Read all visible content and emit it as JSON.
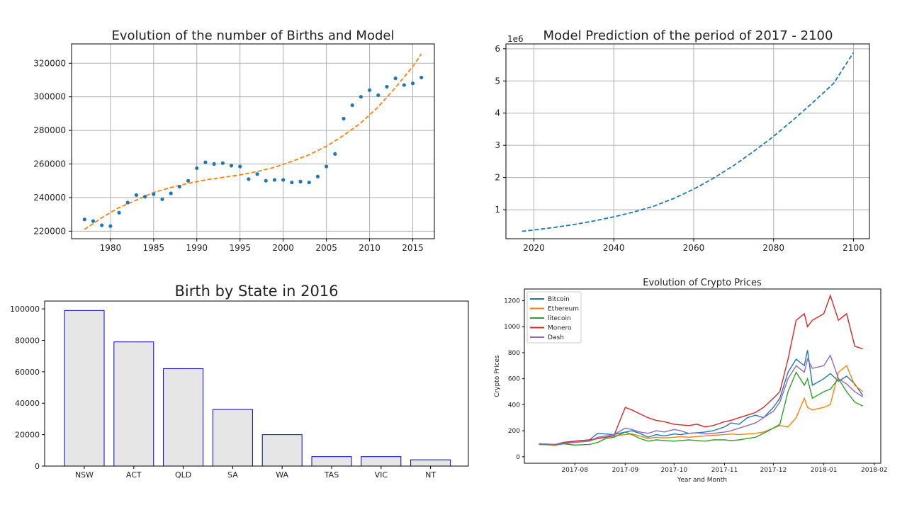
{
  "chart_data": [
    {
      "type": "scatter",
      "title": "Evolution of the number of Births and Model",
      "xlabel": "",
      "ylabel": "",
      "xlim": [
        1975.5,
        2017.5
      ],
      "ylim": [
        215500,
        331500
      ],
      "grid": true,
      "xticks": [
        1980,
        1985,
        1990,
        1995,
        2000,
        2005,
        2010,
        2015
      ],
      "yticks": [
        220000,
        240000,
        260000,
        280000,
        300000,
        320000
      ],
      "colors": {
        "points": "#1f77b4",
        "model": "#ff7f0e"
      },
      "series": [
        {
          "kind": "points",
          "x": [
            1977,
            1978,
            1979,
            1980,
            1981,
            1982,
            1983,
            1984,
            1985,
            1986,
            1987,
            1988,
            1989,
            1990,
            1991,
            1992,
            1993,
            1994,
            1995,
            1996,
            1997,
            1998,
            1999,
            2000,
            2001,
            2002,
            2003,
            2004,
            2005,
            2006,
            2007,
            2008,
            2009,
            2010,
            2011,
            2012,
            2013,
            2014,
            2015,
            2016
          ],
          "y": [
            227000,
            226000,
            223500,
            223000,
            231000,
            237000,
            241500,
            240500,
            242000,
            239000,
            242500,
            246500,
            250000,
            257500,
            261000,
            260000,
            260500,
            259000,
            258500,
            251000,
            254000,
            250000,
            250500,
            250500,
            249000,
            249500,
            249000,
            252500,
            258500,
            266000,
            287000,
            295000,
            300000,
            304000,
            301000,
            306000,
            311000,
            307000,
            308000,
            311500
          ]
        },
        {
          "kind": "model-curve",
          "x": [
            1977,
            1979,
            1981,
            1983,
            1985,
            1987,
            1989,
            1991,
            1993,
            1995,
            1997,
            1999,
            2001,
            2003,
            2005,
            2007,
            2009,
            2011,
            2013,
            2015,
            2016
          ],
          "y": [
            221000,
            228000,
            234000,
            238500,
            243000,
            246000,
            248500,
            250500,
            252000,
            253500,
            255500,
            258000,
            261500,
            265500,
            270500,
            277000,
            284500,
            294000,
            305500,
            318000,
            325500
          ]
        }
      ]
    },
    {
      "type": "line",
      "title": "Model Prediction of the period of 2017 - 2100",
      "offset_label": "1e6",
      "xlim": [
        2013,
        2104
      ],
      "ylim": [
        0.1,
        6.15
      ],
      "grid": true,
      "xticks": [
        2020,
        2040,
        2060,
        2080,
        2100
      ],
      "yticks": [
        1,
        2,
        3,
        4,
        5,
        6
      ],
      "colors": {
        "line": "#1f77b4"
      },
      "series": [
        {
          "x": [
            2017,
            2020,
            2025,
            2030,
            2035,
            2040,
            2045,
            2050,
            2055,
            2060,
            2065,
            2070,
            2075,
            2080,
            2085,
            2090,
            2095,
            2100
          ],
          "y": [
            0.33,
            0.37,
            0.45,
            0.54,
            0.65,
            0.78,
            0.93,
            1.11,
            1.35,
            1.64,
            1.98,
            2.37,
            2.81,
            3.28,
            3.8,
            4.35,
            4.92,
            5.88
          ]
        }
      ]
    },
    {
      "type": "bar",
      "title": "Birth by State in 2016",
      "categories": [
        "NSW",
        "ACT",
        "QLD",
        "SA",
        "WA",
        "TAS",
        "VIC",
        "NT"
      ],
      "values": [
        99000,
        79000,
        62000,
        36000,
        20000,
        6000,
        6000,
        4000
      ],
      "ylim": [
        0,
        105000
      ],
      "yticks": [
        0,
        20000,
        40000,
        60000,
        80000,
        100000
      ],
      "colors": {
        "fill": "#e6e6e6",
        "edge": "#0000cc"
      }
    },
    {
      "type": "line",
      "title": "Evolution of Crypto Prices",
      "xlabel": "Year and Month",
      "ylabel": "Crypto Prices",
      "ylim": [
        -50,
        1290
      ],
      "yticks": [
        0,
        200,
        400,
        600,
        800,
        1000,
        1200
      ],
      "xticks": [
        "2017-08",
        "2017-09",
        "2017-10",
        "2017-11",
        "2017-12",
        "2018-01",
        "2018-02"
      ],
      "legend_position": "top-left",
      "grid": false,
      "series": [
        {
          "name": "Bitcoin",
          "color": "#1f77b4",
          "x": [
            "2017-07-10",
            "2017-07-20",
            "2017-07-25",
            "2017-08-01",
            "2017-08-10",
            "2017-08-15",
            "2017-08-20",
            "2017-08-25",
            "2017-09-01",
            "2017-09-05",
            "2017-09-10",
            "2017-09-15",
            "2017-09-20",
            "2017-09-25",
            "2017-10-01",
            "2017-10-05",
            "2017-10-10",
            "2017-10-15",
            "2017-10-20",
            "2017-10-25",
            "2017-11-01",
            "2017-11-05",
            "2017-11-10",
            "2017-11-15",
            "2017-11-20",
            "2017-11-25",
            "2017-12-01",
            "2017-12-05",
            "2017-12-10",
            "2017-12-15",
            "2017-12-20",
            "2017-12-22",
            "2017-12-25",
            "2018-01-01",
            "2018-01-05",
            "2018-01-10",
            "2018-01-15",
            "2018-01-20",
            "2018-01-25"
          ],
          "y": [
            100,
            95,
            110,
            120,
            130,
            180,
            175,
            170,
            190,
            200,
            180,
            150,
            170,
            160,
            175,
            170,
            180,
            185,
            190,
            200,
            230,
            260,
            250,
            300,
            320,
            300,
            380,
            450,
            650,
            750,
            700,
            820,
            550,
            600,
            640,
            580,
            620,
            560,
            470
          ]
        },
        {
          "name": "Ethereum",
          "color": "#ff7f0e",
          "x": [
            "2017-07-10",
            "2017-07-20",
            "2017-07-25",
            "2017-08-01",
            "2017-08-10",
            "2017-08-15",
            "2017-08-20",
            "2017-08-25",
            "2017-09-01",
            "2017-09-05",
            "2017-09-10",
            "2017-09-15",
            "2017-09-20",
            "2017-09-25",
            "2017-10-01",
            "2017-10-05",
            "2017-10-10",
            "2017-10-15",
            "2017-10-20",
            "2017-10-25",
            "2017-11-01",
            "2017-11-05",
            "2017-11-10",
            "2017-11-15",
            "2017-11-20",
            "2017-11-25",
            "2017-12-01",
            "2017-12-05",
            "2017-12-10",
            "2017-12-15",
            "2017-12-20",
            "2017-12-22",
            "2017-12-25",
            "2018-01-01",
            "2018-01-05",
            "2018-01-10",
            "2018-01-15",
            "2018-01-20",
            "2018-01-25"
          ],
          "y": [
            95,
            90,
            100,
            110,
            120,
            140,
            150,
            160,
            170,
            175,
            160,
            140,
            150,
            145,
            150,
            155,
            150,
            155,
            160,
            165,
            170,
            175,
            170,
            175,
            180,
            190,
            220,
            240,
            230,
            300,
            450,
            380,
            360,
            380,
            400,
            650,
            700,
            550,
            500
          ]
        },
        {
          "name": "litecoin",
          "color": "#2ca02c",
          "x": [
            "2017-07-10",
            "2017-07-20",
            "2017-07-25",
            "2017-08-01",
            "2017-08-10",
            "2017-08-15",
            "2017-08-20",
            "2017-08-25",
            "2017-09-01",
            "2017-09-05",
            "2017-09-10",
            "2017-09-15",
            "2017-09-20",
            "2017-09-25",
            "2017-10-01",
            "2017-10-05",
            "2017-10-10",
            "2017-10-15",
            "2017-10-20",
            "2017-10-25",
            "2017-11-01",
            "2017-11-05",
            "2017-11-10",
            "2017-11-15",
            "2017-11-20",
            "2017-11-25",
            "2017-12-01",
            "2017-12-05",
            "2017-12-10",
            "2017-12-15",
            "2017-12-20",
            "2017-12-22",
            "2017-12-25",
            "2018-01-01",
            "2018-01-05",
            "2018-01-10",
            "2018-01-15",
            "2018-01-20",
            "2018-01-25"
          ],
          "y": [
            95,
            90,
            100,
            90,
            95,
            110,
            140,
            150,
            190,
            170,
            140,
            120,
            130,
            125,
            120,
            125,
            130,
            125,
            120,
            130,
            130,
            125,
            130,
            140,
            150,
            180,
            220,
            250,
            500,
            650,
            550,
            600,
            450,
            500,
            520,
            600,
            500,
            420,
            390
          ]
        },
        {
          "name": "Monero",
          "color": "#d62728",
          "x": [
            "2017-07-10",
            "2017-07-20",
            "2017-07-25",
            "2017-08-01",
            "2017-08-10",
            "2017-08-15",
            "2017-08-20",
            "2017-08-25",
            "2017-09-01",
            "2017-09-05",
            "2017-09-10",
            "2017-09-15",
            "2017-09-20",
            "2017-09-25",
            "2017-10-01",
            "2017-10-05",
            "2017-10-10",
            "2017-10-15",
            "2017-10-20",
            "2017-10-25",
            "2017-11-01",
            "2017-11-05",
            "2017-11-10",
            "2017-11-15",
            "2017-11-20",
            "2017-11-25",
            "2017-12-01",
            "2017-12-05",
            "2017-12-10",
            "2017-12-15",
            "2017-12-20",
            "2017-12-22",
            "2017-12-25",
            "2018-01-01",
            "2018-01-05",
            "2018-01-10",
            "2018-01-15",
            "2018-01-20",
            "2018-01-25"
          ],
          "y": [
            100,
            90,
            110,
            120,
            130,
            140,
            150,
            160,
            380,
            360,
            330,
            300,
            280,
            270,
            250,
            245,
            240,
            250,
            230,
            240,
            270,
            280,
            300,
            320,
            340,
            380,
            450,
            500,
            750,
            1050,
            1100,
            1000,
            1050,
            1100,
            1240,
            1050,
            1100,
            850,
            830
          ]
        },
        {
          "name": "Dash",
          "color": "#9467bd",
          "x": [
            "2017-07-10",
            "2017-07-20",
            "2017-07-25",
            "2017-08-01",
            "2017-08-10",
            "2017-08-15",
            "2017-08-20",
            "2017-08-25",
            "2017-09-01",
            "2017-09-05",
            "2017-09-10",
            "2017-09-15",
            "2017-09-20",
            "2017-09-25",
            "2017-10-01",
            "2017-10-05",
            "2017-10-10",
            "2017-10-15",
            "2017-10-20",
            "2017-10-25",
            "2017-11-01",
            "2017-11-05",
            "2017-11-10",
            "2017-11-15",
            "2017-11-20",
            "2017-11-25",
            "2017-12-01",
            "2017-12-05",
            "2017-12-10",
            "2017-12-15",
            "2017-12-20",
            "2017-12-22",
            "2017-12-25",
            "2018-01-01",
            "2018-01-05",
            "2018-01-10",
            "2018-01-15",
            "2018-01-20",
            "2018-01-25"
          ],
          "y": [
            100,
            95,
            105,
            110,
            120,
            150,
            160,
            170,
            220,
            210,
            190,
            180,
            200,
            190,
            210,
            200,
            180,
            185,
            175,
            180,
            190,
            200,
            220,
            240,
            260,
            300,
            350,
            420,
            600,
            700,
            650,
            750,
            680,
            700,
            780,
            600,
            560,
            500,
            460
          ]
        }
      ]
    }
  ]
}
